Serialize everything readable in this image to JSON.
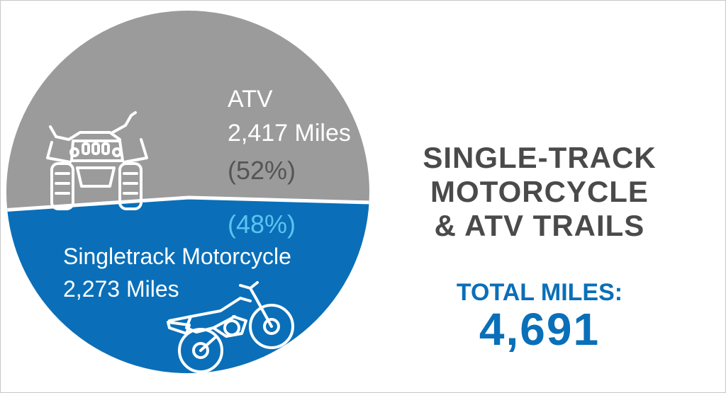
{
  "chart_data": {
    "type": "pie",
    "title_lines": [
      "SINGLE-TRACK",
      "MOTORCYCLE",
      "& ATV TRAILS"
    ],
    "slices": [
      {
        "name": "ATV",
        "value": 2417,
        "value_label": "2,417 Miles",
        "percent": 52,
        "percent_label": "(52%)",
        "color": "#9b9b9b",
        "icon": "atv-icon"
      },
      {
        "name": "Singletrack Motorcycle",
        "value": 2273,
        "value_label": "2,273 Miles",
        "percent": 48,
        "percent_label": "(48%)",
        "color": "#0a6fb8",
        "icon": "dirt-bike-icon"
      }
    ],
    "total_label": "TOTAL MILES:",
    "total_value": "4,691"
  },
  "colors": {
    "atv": "#9b9b9b",
    "motorcycle": "#0a6fb8",
    "percent_atv_text": "#555555",
    "percent_moto_text": "#5fc3f0",
    "title_text": "#4a4a4a",
    "total_text": "#0a6fb8"
  }
}
